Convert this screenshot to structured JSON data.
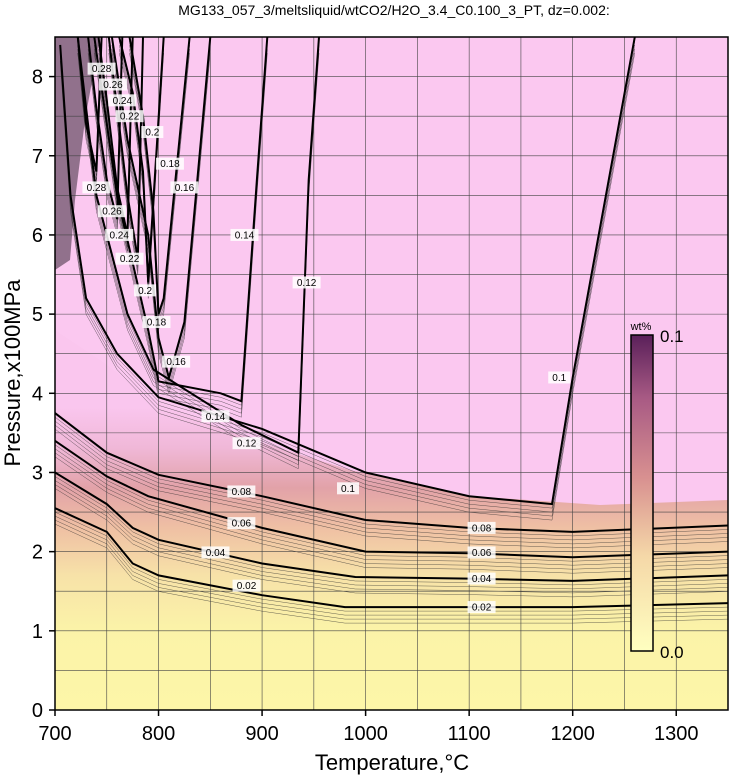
{
  "chart_data": {
    "type": "heatmap",
    "title": "MG133_057_3/meltsliquid/wtCO2/H2O_3.4_C0.100_3_PT, dz=0.002:",
    "xlabel": "Temperature,°C",
    "ylabel": "Pressure,x100MPa",
    "xlim": [
      700,
      1350
    ],
    "ylim": [
      0,
      8.5
    ],
    "x_ticks": [
      "700",
      "800",
      "900",
      "1000",
      "1100",
      "1200",
      "1300"
    ],
    "y_ticks": [
      "0",
      "1",
      "2",
      "3",
      "4",
      "5",
      "6",
      "7",
      "8"
    ],
    "grid": true,
    "colorbar": {
      "unit": "wt%",
      "min_label": "0.0",
      "max_label": "0.1",
      "range": [
        0.0,
        0.1
      ],
      "colors": [
        "#ffffc0",
        "#f5d8a8",
        "#d89090",
        "#a85a84",
        "#5a205a"
      ]
    },
    "contours": [
      {
        "level": 0.02,
        "label": "0.02",
        "points": [
          [
            700,
            2.55
          ],
          [
            750,
            2.25
          ],
          [
            775,
            1.85
          ],
          [
            800,
            1.7
          ],
          [
            900,
            1.45
          ],
          [
            980,
            1.3
          ],
          [
            1100,
            1.3
          ],
          [
            1200,
            1.3
          ],
          [
            1350,
            1.35
          ]
        ]
      },
      {
        "level": 0.04,
        "label": "0.04",
        "points": [
          [
            700,
            3.0
          ],
          [
            750,
            2.6
          ],
          [
            775,
            2.3
          ],
          [
            800,
            2.15
          ],
          [
            900,
            1.85
          ],
          [
            990,
            1.68
          ],
          [
            1100,
            1.66
          ],
          [
            1200,
            1.63
          ],
          [
            1350,
            1.7
          ]
        ]
      },
      {
        "level": 0.06,
        "label": "0.06",
        "points": [
          [
            700,
            3.4
          ],
          [
            750,
            2.95
          ],
          [
            790,
            2.7
          ],
          [
            900,
            2.3
          ],
          [
            1000,
            2.0
          ],
          [
            1100,
            1.98
          ],
          [
            1200,
            1.93
          ],
          [
            1350,
            2.0
          ]
        ]
      },
      {
        "level": 0.08,
        "label": "0.08",
        "points": [
          [
            700,
            3.75
          ],
          [
            750,
            3.25
          ],
          [
            800,
            2.97
          ],
          [
            900,
            2.7
          ],
          [
            1000,
            2.4
          ],
          [
            1100,
            2.3
          ],
          [
            1200,
            2.25
          ],
          [
            1350,
            2.33
          ]
        ]
      },
      {
        "level": 0.1,
        "label": "0.1",
        "points": [
          [
            705,
            8.4
          ],
          [
            715,
            6.5
          ],
          [
            730,
            5.2
          ],
          [
            760,
            4.5
          ],
          [
            800,
            3.95
          ],
          [
            900,
            3.55
          ],
          [
            1000,
            3.0
          ],
          [
            1100,
            2.7
          ],
          [
            1180,
            2.6
          ],
          [
            1200,
            4.2
          ],
          [
            1260,
            8.5
          ]
        ]
      },
      {
        "level": 0.12,
        "label": "0.12",
        "points": [
          [
            722,
            8.5
          ],
          [
            740,
            6.5
          ],
          [
            770,
            5.0
          ],
          [
            795,
            4.3
          ],
          [
            880,
            3.6
          ],
          [
            935,
            3.25
          ],
          [
            945,
            6.7
          ],
          [
            955,
            8.5
          ]
        ]
      },
      {
        "level": 0.14,
        "label": "0.14",
        "points": [
          [
            738,
            8.5
          ],
          [
            760,
            6.5
          ],
          [
            790,
            4.8
          ],
          [
            800,
            4.15
          ],
          [
            860,
            4.0
          ],
          [
            880,
            3.9
          ],
          [
            895,
            6.7
          ],
          [
            905,
            8.5
          ]
        ]
      },
      {
        "level": 0.16,
        "label": "0.16",
        "points": [
          [
            755,
            8.5
          ],
          [
            770,
            7.2
          ],
          [
            790,
            6.0
          ],
          [
            800,
            4.7
          ],
          [
            810,
            4.2
          ],
          [
            825,
            4.9
          ],
          [
            850,
            8.5
          ]
        ]
      },
      {
        "level": 0.18,
        "label": "0.18",
        "points": [
          [
            772,
            8.5
          ],
          [
            785,
            7.5
          ],
          [
            795,
            6.3
          ],
          [
            800,
            5.0
          ],
          [
            805,
            5.2
          ],
          [
            830,
            8.5
          ]
        ]
      },
      {
        "level": 0.2,
        "label": "0.2",
        "points": [
          [
            762,
            8.5
          ],
          [
            775,
            7.8
          ],
          [
            785,
            6.8
          ],
          [
            790,
            5.4
          ],
          [
            805,
            8.5
          ]
        ]
      },
      {
        "level": 0.22,
        "label": "0.22",
        "points": [
          [
            752,
            8.5
          ],
          [
            760,
            7.6
          ],
          [
            770,
            6.5
          ],
          [
            780,
            5.7
          ],
          [
            785,
            8.5
          ]
        ]
      },
      {
        "level": 0.24,
        "label": "0.24",
        "points": [
          [
            742,
            8.5
          ],
          [
            750,
            7.7
          ],
          [
            760,
            6.6
          ],
          [
            770,
            6.0
          ],
          [
            775,
            8.5
          ]
        ]
      },
      {
        "level": 0.26,
        "label": "0.26",
        "points": [
          [
            732,
            8.5
          ],
          [
            740,
            7.6
          ],
          [
            750,
            6.7
          ],
          [
            760,
            6.2
          ],
          [
            765,
            8.5
          ]
        ]
      },
      {
        "level": 0.28,
        "label": "0.28",
        "points": [
          [
            722,
            8.5
          ],
          [
            730,
            7.4
          ],
          [
            740,
            6.8
          ],
          [
            745,
            8.5
          ]
        ]
      }
    ],
    "contour_labels": [
      {
        "text": "0.02",
        "x": 885,
        "y": 1.57
      },
      {
        "text": "0.04",
        "x": 855,
        "y": 1.99
      },
      {
        "text": "0.06",
        "x": 880,
        "y": 2.36
      },
      {
        "text": "0.08",
        "x": 880,
        "y": 2.76
      },
      {
        "text": "0.02",
        "x": 1112,
        "y": 1.3
      },
      {
        "text": "0.04",
        "x": 1112,
        "y": 1.66
      },
      {
        "text": "0.06",
        "x": 1112,
        "y": 1.99
      },
      {
        "text": "0.08",
        "x": 1112,
        "y": 2.3
      },
      {
        "text": "0.1",
        "x": 983,
        "y": 2.8
      },
      {
        "text": "0.12",
        "x": 885,
        "y": 3.37
      },
      {
        "text": "0.14",
        "x": 855,
        "y": 3.71
      },
      {
        "text": "0.16",
        "x": 817,
        "y": 4.4
      },
      {
        "text": "0.18",
        "x": 798,
        "y": 4.9
      },
      {
        "text": "0.2",
        "x": 787,
        "y": 5.3
      },
      {
        "text": "0.22",
        "x": 772,
        "y": 5.7
      },
      {
        "text": "0.24",
        "x": 762,
        "y": 6.0
      },
      {
        "text": "0.26",
        "x": 755,
        "y": 6.3
      },
      {
        "text": "0.28",
        "x": 740,
        "y": 6.6
      },
      {
        "text": "0.12",
        "x": 943,
        "y": 5.4
      },
      {
        "text": "0.14",
        "x": 883,
        "y": 6.0
      },
      {
        "text": "0.16",
        "x": 825,
        "y": 6.6
      },
      {
        "text": "0.18",
        "x": 811,
        "y": 6.9
      },
      {
        "text": "0.2",
        "x": 794,
        "y": 7.3
      },
      {
        "text": "0.22",
        "x": 772,
        "y": 7.5
      },
      {
        "text": "0.24",
        "x": 765,
        "y": 7.7
      },
      {
        "text": "0.26",
        "x": 756,
        "y": 7.9
      },
      {
        "text": "0.28",
        "x": 745,
        "y": 8.1
      },
      {
        "text": "0.1",
        "x": 1187,
        "y": 4.2
      }
    ]
  }
}
